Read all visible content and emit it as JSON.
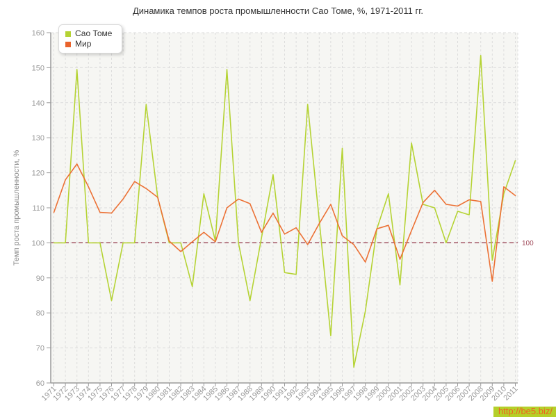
{
  "title": "Динамика темпов роста промышленности Сао Томе, %, 1971-2011 гг.",
  "watermark": {
    "text": "http://be5.biz/",
    "bg_color": "#b5d02a",
    "text_color": "#ee6322"
  },
  "legend": {
    "items": [
      {
        "label": "Сао Томе",
        "color": "#b5d334"
      },
      {
        "label": "Мир",
        "color": "#e9632c"
      }
    ]
  },
  "chart_data": {
    "type": "line",
    "title": "Динамика темпов роста промышленности Сао Томе, %, 1971-2011 гг.",
    "xlabel": "",
    "ylabel": "Темп роста промышленности, %",
    "ylim": [
      60,
      160
    ],
    "yticks": [
      60,
      70,
      80,
      90,
      100,
      110,
      120,
      130,
      140,
      150,
      160
    ],
    "grid": true,
    "legend_position": "top-left",
    "reference_line": {
      "value": 100,
      "label": "100",
      "line_color": "#8f2e42",
      "label_color": "#a04a5a"
    },
    "x": [
      1971,
      1972,
      1973,
      1974,
      1975,
      1976,
      1977,
      1978,
      1979,
      1980,
      1981,
      1982,
      1983,
      1984,
      1985,
      1986,
      1987,
      1988,
      1989,
      1990,
      1991,
      1992,
      1993,
      1994,
      1995,
      1996,
      1997,
      1998,
      1999,
      2000,
      2001,
      2002,
      2003,
      2004,
      2005,
      2006,
      2007,
      2008,
      2009,
      2010,
      2011
    ],
    "series": [
      {
        "name": "Сао Томе",
        "color": "#b5d334",
        "values": [
          100,
          100,
          149.5,
          100,
          100,
          83.5,
          100,
          100,
          139.5,
          113,
          100,
          100,
          87.5,
          114,
          100.5,
          149.5,
          100,
          83.5,
          101.5,
          119.5,
          91.5,
          91,
          139.5,
          106.5,
          73.5,
          127,
          64.5,
          80.5,
          104,
          114,
          88,
          128.5,
          111,
          110,
          100,
          109,
          108,
          153.5,
          95,
          114,
          123.5
        ]
      },
      {
        "name": "Мир",
        "color": "#ec7135",
        "values": [
          108.7,
          118,
          122.5,
          116,
          108.7,
          108.5,
          112.5,
          117.5,
          115.5,
          113,
          100.5,
          97.5,
          100.3,
          103,
          100.3,
          110,
          112.5,
          111.2,
          103,
          108.5,
          102.5,
          104.3,
          99.5,
          105.5,
          111,
          102,
          99.5,
          94.5,
          104,
          105,
          95.3,
          103.5,
          111.5,
          115,
          111,
          110.5,
          112.3,
          111.8,
          89,
          116,
          113.5
        ]
      }
    ],
    "plot_style": {
      "bg": "#f6f6f3",
      "grid_color": "#dcdcdc",
      "axis_color": "#9a9a9a",
      "tick_label_color": "#999999"
    }
  }
}
